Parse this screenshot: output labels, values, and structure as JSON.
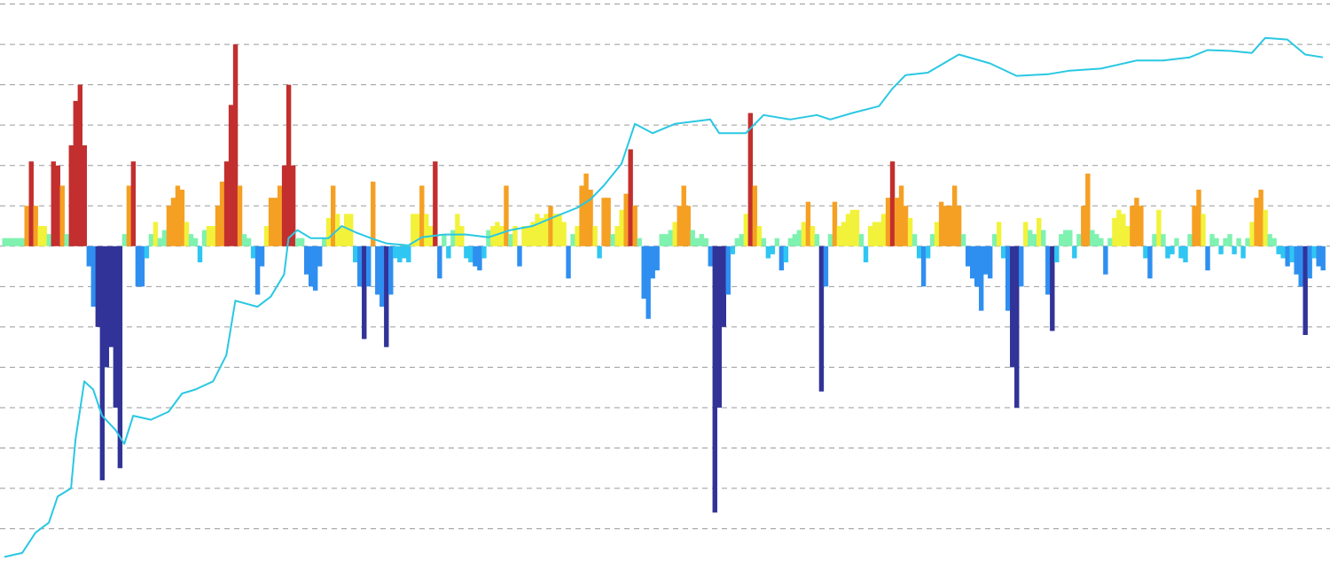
{
  "chart_data": {
    "type": "bar",
    "title": "",
    "xlabel": "",
    "ylabel": "",
    "ylim": [
      -7.8,
      6.1
    ],
    "grid": true,
    "grid_step": 1,
    "colors": {
      "strong_positive": "#c22f2e",
      "positive": "#f5a023",
      "mild_positive": "#f2f23a",
      "small_positive": "#7ff2b0",
      "small_negative": "#2fc6f2",
      "negative": "#2f8ff0",
      "strong_negative": "#323398",
      "line": "#29c8e2",
      "grid": "#9a9a9a"
    },
    "bars": [
      0.2,
      0.2,
      0.2,
      0.2,
      0.2,
      1.0,
      2.1,
      1.0,
      0.5,
      0.5,
      0.3,
      2.1,
      2.0,
      1.5,
      0.3,
      2.5,
      3.6,
      4.0,
      2.5,
      -0.5,
      -1.5,
      -2.0,
      -5.8,
      -3.0,
      -2.5,
      -4.0,
      -5.5,
      0.3,
      1.5,
      2.1,
      -1.0,
      -1.0,
      -0.3,
      0.3,
      0.6,
      0.2,
      0.4,
      1.0,
      1.2,
      1.5,
      1.4,
      0.6,
      0.3,
      0.2,
      -0.4,
      0.4,
      0.5,
      0.5,
      1.0,
      1.6,
      2.1,
      3.5,
      5.0,
      1.5,
      0.3,
      0.2,
      -0.3,
      -1.2,
      -0.5,
      0.5,
      1.2,
      1.2,
      1.5,
      2.0,
      4.0,
      2.0,
      0.2,
      0.2,
      -0.7,
      -1.0,
      -1.1,
      -0.5,
      0.2,
      0.7,
      1.5,
      0.8,
      0.5,
      0.8,
      0.8,
      -0.4,
      -1.0,
      -2.3,
      -1.0,
      1.6,
      -1.2,
      -1.5,
      -2.5,
      -1.2,
      -0.3,
      -0.4,
      -0.3,
      -0.4,
      0.8,
      0.8,
      1.5,
      0.8,
      0.5,
      2.1,
      -0.8,
      0.3,
      -0.3,
      0.4,
      0.8,
      0.5,
      -0.3,
      -0.4,
      -0.5,
      -0.6,
      -0.3,
      0.4,
      0.5,
      0.6,
      0.5,
      1.5,
      0.3,
      0.5,
      -0.5,
      0.5,
      0.5,
      0.6,
      0.8,
      0.7,
      0.8,
      1.0,
      0.8,
      0.8,
      0.6,
      -0.8,
      0.3,
      0.5,
      1.5,
      1.8,
      1.4,
      0.5,
      -0.3,
      1.2,
      1.2,
      0.3,
      0.5,
      0.9,
      1.3,
      2.4,
      1.0,
      0.2,
      -1.3,
      -1.8,
      -0.8,
      -0.6,
      0.3,
      0.3,
      0.4,
      0.6,
      1.0,
      1.5,
      1.0,
      0.4,
      0.2,
      0.3,
      0.2,
      -0.5,
      -6.6,
      -4.0,
      -2.0,
      -1.2,
      -0.2,
      0.2,
      0.3,
      0.8,
      3.3,
      1.5,
      0.5,
      0.2,
      -0.3,
      -0.2,
      0.2,
      -0.6,
      -0.4,
      0.2,
      0.3,
      0.4,
      0.6,
      1.1,
      0.5,
      0.3,
      -3.6,
      -1.0,
      0.3,
      1.1,
      0.5,
      0.6,
      0.8,
      0.9,
      0.9,
      0.3,
      -0.4,
      0.5,
      0.6,
      0.6,
      0.8,
      1.2,
      2.1,
      1.2,
      1.5,
      1.0,
      0.7,
      0.3,
      -0.3,
      -1.0,
      -0.3,
      0.3,
      0.6,
      1.1,
      1.0,
      1.0,
      1.5,
      1.0,
      0.3,
      -0.5,
      -0.8,
      -1.0,
      -1.6,
      -0.7,
      -0.8,
      0.3,
      0.6,
      -0.3,
      -1.6,
      -3.0,
      -4.0,
      -1.0,
      0.6,
      0.4,
      0.3,
      0.7,
      0.4,
      -1.2,
      -2.1,
      -0.4,
      0.3,
      0.4,
      0.4,
      -0.3,
      0.3,
      1.0,
      1.8,
      0.4,
      0.3,
      0.2,
      -0.7,
      0.2,
      0.7,
      0.9,
      0.8,
      0.5,
      1.0,
      1.2,
      1.0,
      -0.3,
      -0.8,
      0.3,
      0.9,
      0.3,
      -0.3,
      -0.2,
      0.2,
      -0.3,
      -0.4,
      0.3,
      1.0,
      1.4,
      0.8,
      -0.6,
      0.3,
      0.2,
      -0.2,
      0.2,
      0.3,
      -0.2,
      0.2,
      -0.3,
      0.2,
      0.6,
      1.2,
      1.4,
      0.9,
      0.3,
      0.2,
      -0.2,
      -0.3,
      -0.5,
      -0.4,
      -0.7,
      -1.0,
      -2.2,
      -0.8,
      -0.3,
      -0.5,
      -0.6
    ],
    "line": [
      [
        0,
        -7.7
      ],
      [
        4,
        -7.6
      ],
      [
        7,
        -7.1
      ],
      [
        10,
        -6.85
      ],
      [
        12,
        -6.2
      ],
      [
        15,
        -6.0
      ],
      [
        16,
        -4.8
      ],
      [
        18,
        -3.35
      ],
      [
        20,
        -3.55
      ],
      [
        22,
        -4.2
      ],
      [
        25,
        -4.55
      ],
      [
        27,
        -4.9
      ],
      [
        29,
        -4.2
      ],
      [
        33,
        -4.3
      ],
      [
        37,
        -4.1
      ],
      [
        40,
        -3.65
      ],
      [
        43,
        -3.55
      ],
      [
        47,
        -3.35
      ],
      [
        50,
        -2.7
      ],
      [
        52,
        -1.35
      ],
      [
        57,
        -1.5
      ],
      [
        60,
        -1.25
      ],
      [
        63,
        -0.7
      ],
      [
        64,
        0.2
      ],
      [
        66,
        0.4
      ],
      [
        69,
        0.2
      ],
      [
        73,
        0.2
      ],
      [
        76,
        0.5
      ],
      [
        79,
        0.35
      ],
      [
        83,
        0.18
      ],
      [
        86,
        0.07
      ],
      [
        91,
        0.02
      ],
      [
        94,
        0.22
      ],
      [
        99,
        0.29
      ],
      [
        104,
        0.29
      ],
      [
        109,
        0.22
      ],
      [
        114,
        0.4
      ],
      [
        119,
        0.5
      ],
      [
        124,
        0.73
      ],
      [
        129,
        0.95
      ],
      [
        132,
        1.16
      ],
      [
        135,
        1.5
      ],
      [
        139,
        2.04
      ],
      [
        142,
        3.03
      ],
      [
        146,
        2.8
      ],
      [
        151,
        3.03
      ],
      [
        159,
        3.14
      ],
      [
        161,
        2.8
      ],
      [
        167,
        2.8
      ],
      [
        171,
        3.25
      ],
      [
        177,
        3.14
      ],
      [
        183,
        3.25
      ],
      [
        186,
        3.14
      ],
      [
        191,
        3.3
      ],
      [
        197,
        3.47
      ],
      [
        200,
        3.9
      ],
      [
        203,
        4.24
      ],
      [
        208,
        4.3
      ],
      [
        215,
        4.75
      ],
      [
        222,
        4.53
      ],
      [
        228,
        4.22
      ],
      [
        235,
        4.26
      ],
      [
        240,
        4.35
      ],
      [
        247,
        4.4
      ],
      [
        255,
        4.6
      ],
      [
        261,
        4.6
      ],
      [
        267,
        4.68
      ],
      [
        271,
        4.86
      ],
      [
        276,
        4.84
      ],
      [
        281,
        4.79
      ],
      [
        284,
        5.16
      ],
      [
        289,
        5.12
      ],
      [
        293,
        4.75
      ],
      [
        297,
        4.68
      ]
    ]
  }
}
